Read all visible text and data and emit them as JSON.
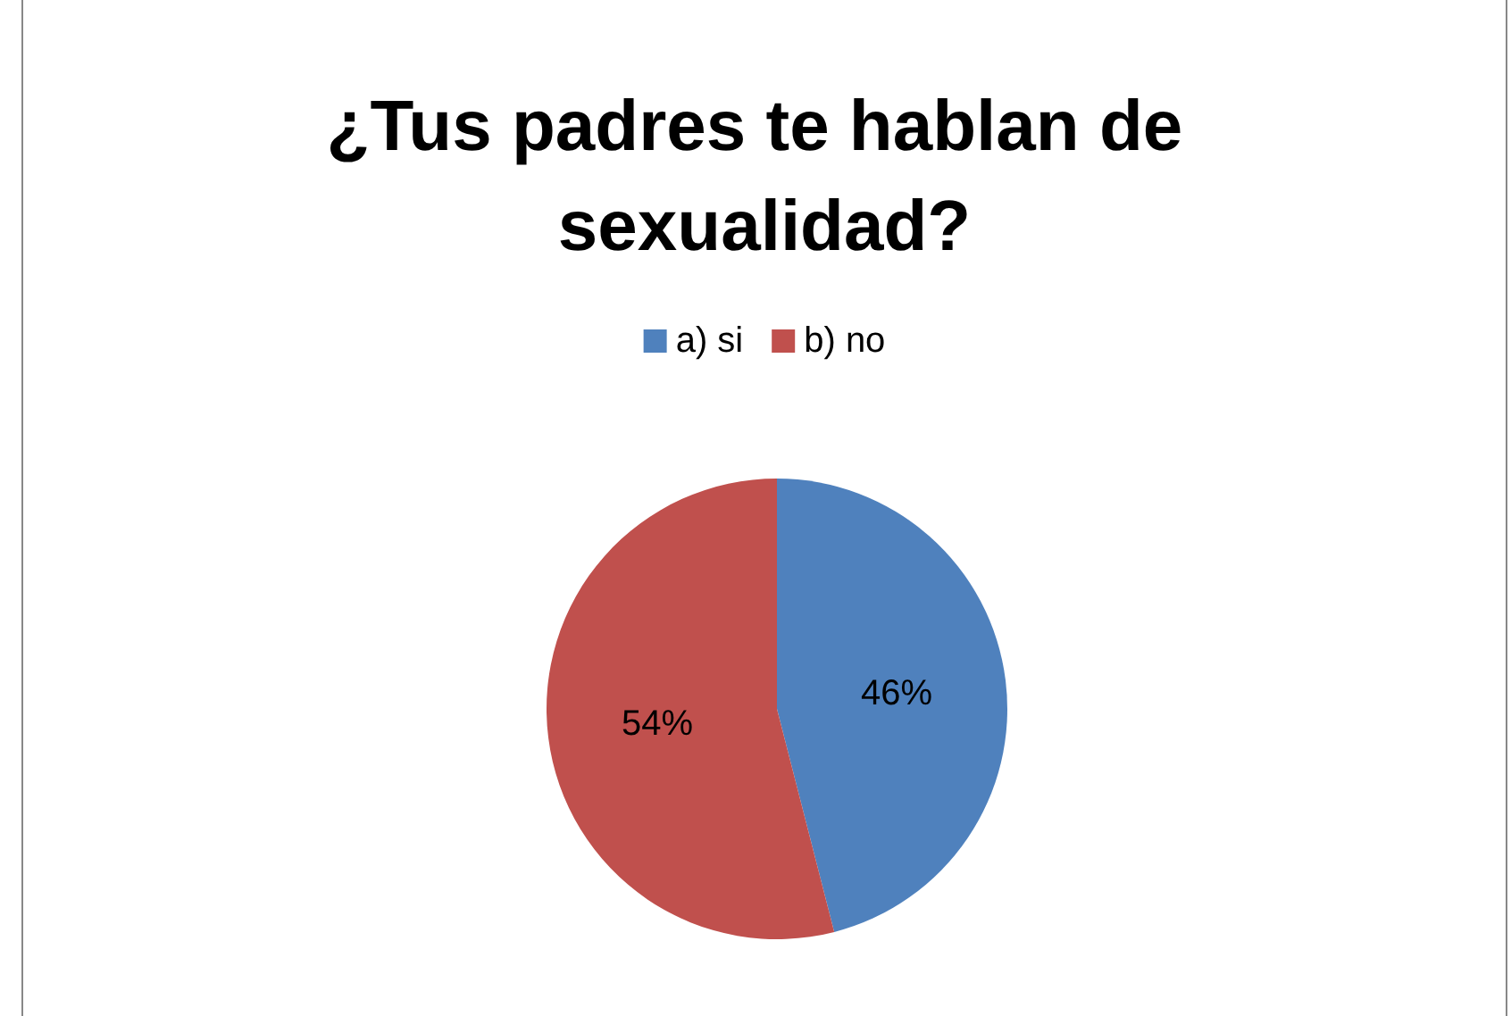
{
  "chart_data": {
    "type": "pie",
    "title": "¿Tus padres te hablan de sexualidad?",
    "categories": [
      "a) si",
      "b) no"
    ],
    "values": [
      46,
      54
    ],
    "colors": [
      "#4f81bd",
      "#c0504d"
    ],
    "value_labels": [
      "46%",
      "54%"
    ],
    "legend": "top"
  }
}
